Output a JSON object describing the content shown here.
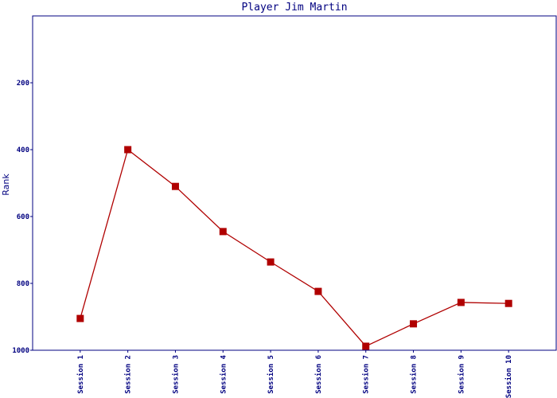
{
  "chart_data": {
    "type": "line",
    "title": "Player Jim Martin",
    "y_label": "Rank",
    "categories": [
      "Session 1",
      "Session 2",
      "Session 3",
      "Session 4",
      "Session 5",
      "Session 6",
      "Session 7",
      "Session 8",
      "Session 9",
      "Session 10"
    ],
    "series": [
      {
        "name": "Rank",
        "color": "#b00000",
        "values": [
          905,
          400,
          510,
          645,
          736,
          824,
          988,
          921,
          857,
          860
        ]
      }
    ],
    "ylim": [
      0,
      1000
    ],
    "y_inverted": true,
    "yticks": [
      200,
      400,
      600,
      800,
      1000
    ],
    "grid": false
  }
}
